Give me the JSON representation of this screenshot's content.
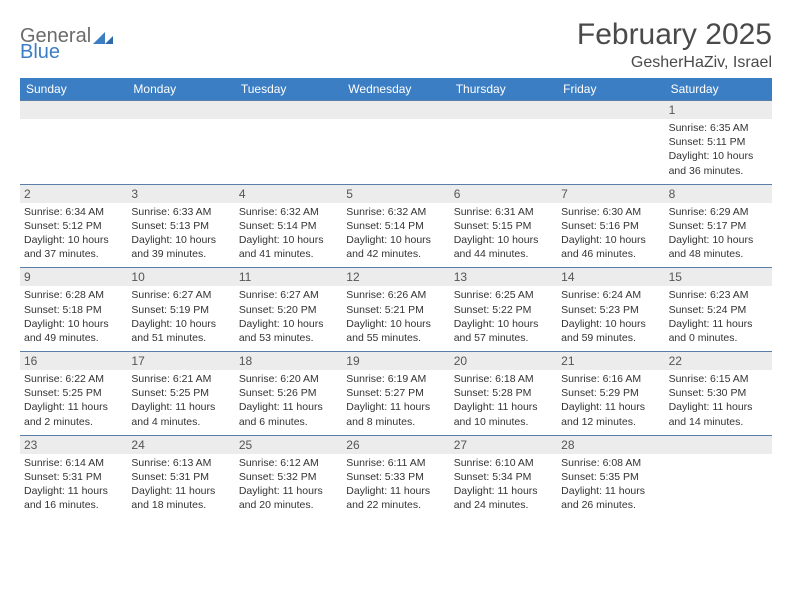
{
  "logo": {
    "word1": "General",
    "word2": "Blue",
    "color1": "#6b6b6b",
    "color2": "#3b7ec4"
  },
  "title": "February 2025",
  "location": "GesherHaZiv, Israel",
  "colors": {
    "header_bg": "#3b7ec4",
    "header_text": "#ffffff",
    "daynum_bg": "#ececec",
    "week_divider": "#5a7ea8",
    "body_text": "#333333",
    "title_text": "#4a4a4a"
  },
  "fonts": {
    "title_size": 30,
    "location_size": 16,
    "dow_size": 12,
    "daynum_size": 12,
    "body_size": 10.5
  },
  "days_of_week": [
    "Sunday",
    "Monday",
    "Tuesday",
    "Wednesday",
    "Thursday",
    "Friday",
    "Saturday"
  ],
  "weeks": [
    [
      null,
      null,
      null,
      null,
      null,
      null,
      {
        "n": "1",
        "sunrise": "6:35 AM",
        "sunset": "5:11 PM",
        "daylight": "10 hours and 36 minutes."
      }
    ],
    [
      {
        "n": "2",
        "sunrise": "6:34 AM",
        "sunset": "5:12 PM",
        "daylight": "10 hours and 37 minutes."
      },
      {
        "n": "3",
        "sunrise": "6:33 AM",
        "sunset": "5:13 PM",
        "daylight": "10 hours and 39 minutes."
      },
      {
        "n": "4",
        "sunrise": "6:32 AM",
        "sunset": "5:14 PM",
        "daylight": "10 hours and 41 minutes."
      },
      {
        "n": "5",
        "sunrise": "6:32 AM",
        "sunset": "5:14 PM",
        "daylight": "10 hours and 42 minutes."
      },
      {
        "n": "6",
        "sunrise": "6:31 AM",
        "sunset": "5:15 PM",
        "daylight": "10 hours and 44 minutes."
      },
      {
        "n": "7",
        "sunrise": "6:30 AM",
        "sunset": "5:16 PM",
        "daylight": "10 hours and 46 minutes."
      },
      {
        "n": "8",
        "sunrise": "6:29 AM",
        "sunset": "5:17 PM",
        "daylight": "10 hours and 48 minutes."
      }
    ],
    [
      {
        "n": "9",
        "sunrise": "6:28 AM",
        "sunset": "5:18 PM",
        "daylight": "10 hours and 49 minutes."
      },
      {
        "n": "10",
        "sunrise": "6:27 AM",
        "sunset": "5:19 PM",
        "daylight": "10 hours and 51 minutes."
      },
      {
        "n": "11",
        "sunrise": "6:27 AM",
        "sunset": "5:20 PM",
        "daylight": "10 hours and 53 minutes."
      },
      {
        "n": "12",
        "sunrise": "6:26 AM",
        "sunset": "5:21 PM",
        "daylight": "10 hours and 55 minutes."
      },
      {
        "n": "13",
        "sunrise": "6:25 AM",
        "sunset": "5:22 PM",
        "daylight": "10 hours and 57 minutes."
      },
      {
        "n": "14",
        "sunrise": "6:24 AM",
        "sunset": "5:23 PM",
        "daylight": "10 hours and 59 minutes."
      },
      {
        "n": "15",
        "sunrise": "6:23 AM",
        "sunset": "5:24 PM",
        "daylight": "11 hours and 0 minutes."
      }
    ],
    [
      {
        "n": "16",
        "sunrise": "6:22 AM",
        "sunset": "5:25 PM",
        "daylight": "11 hours and 2 minutes."
      },
      {
        "n": "17",
        "sunrise": "6:21 AM",
        "sunset": "5:25 PM",
        "daylight": "11 hours and 4 minutes."
      },
      {
        "n": "18",
        "sunrise": "6:20 AM",
        "sunset": "5:26 PM",
        "daylight": "11 hours and 6 minutes."
      },
      {
        "n": "19",
        "sunrise": "6:19 AM",
        "sunset": "5:27 PM",
        "daylight": "11 hours and 8 minutes."
      },
      {
        "n": "20",
        "sunrise": "6:18 AM",
        "sunset": "5:28 PM",
        "daylight": "11 hours and 10 minutes."
      },
      {
        "n": "21",
        "sunrise": "6:16 AM",
        "sunset": "5:29 PM",
        "daylight": "11 hours and 12 minutes."
      },
      {
        "n": "22",
        "sunrise": "6:15 AM",
        "sunset": "5:30 PM",
        "daylight": "11 hours and 14 minutes."
      }
    ],
    [
      {
        "n": "23",
        "sunrise": "6:14 AM",
        "sunset": "5:31 PM",
        "daylight": "11 hours and 16 minutes."
      },
      {
        "n": "24",
        "sunrise": "6:13 AM",
        "sunset": "5:31 PM",
        "daylight": "11 hours and 18 minutes."
      },
      {
        "n": "25",
        "sunrise": "6:12 AM",
        "sunset": "5:32 PM",
        "daylight": "11 hours and 20 minutes."
      },
      {
        "n": "26",
        "sunrise": "6:11 AM",
        "sunset": "5:33 PM",
        "daylight": "11 hours and 22 minutes."
      },
      {
        "n": "27",
        "sunrise": "6:10 AM",
        "sunset": "5:34 PM",
        "daylight": "11 hours and 24 minutes."
      },
      {
        "n": "28",
        "sunrise": "6:08 AM",
        "sunset": "5:35 PM",
        "daylight": "11 hours and 26 minutes."
      },
      null
    ]
  ],
  "labels": {
    "sunrise": "Sunrise:",
    "sunset": "Sunset:",
    "daylight": "Daylight:"
  }
}
